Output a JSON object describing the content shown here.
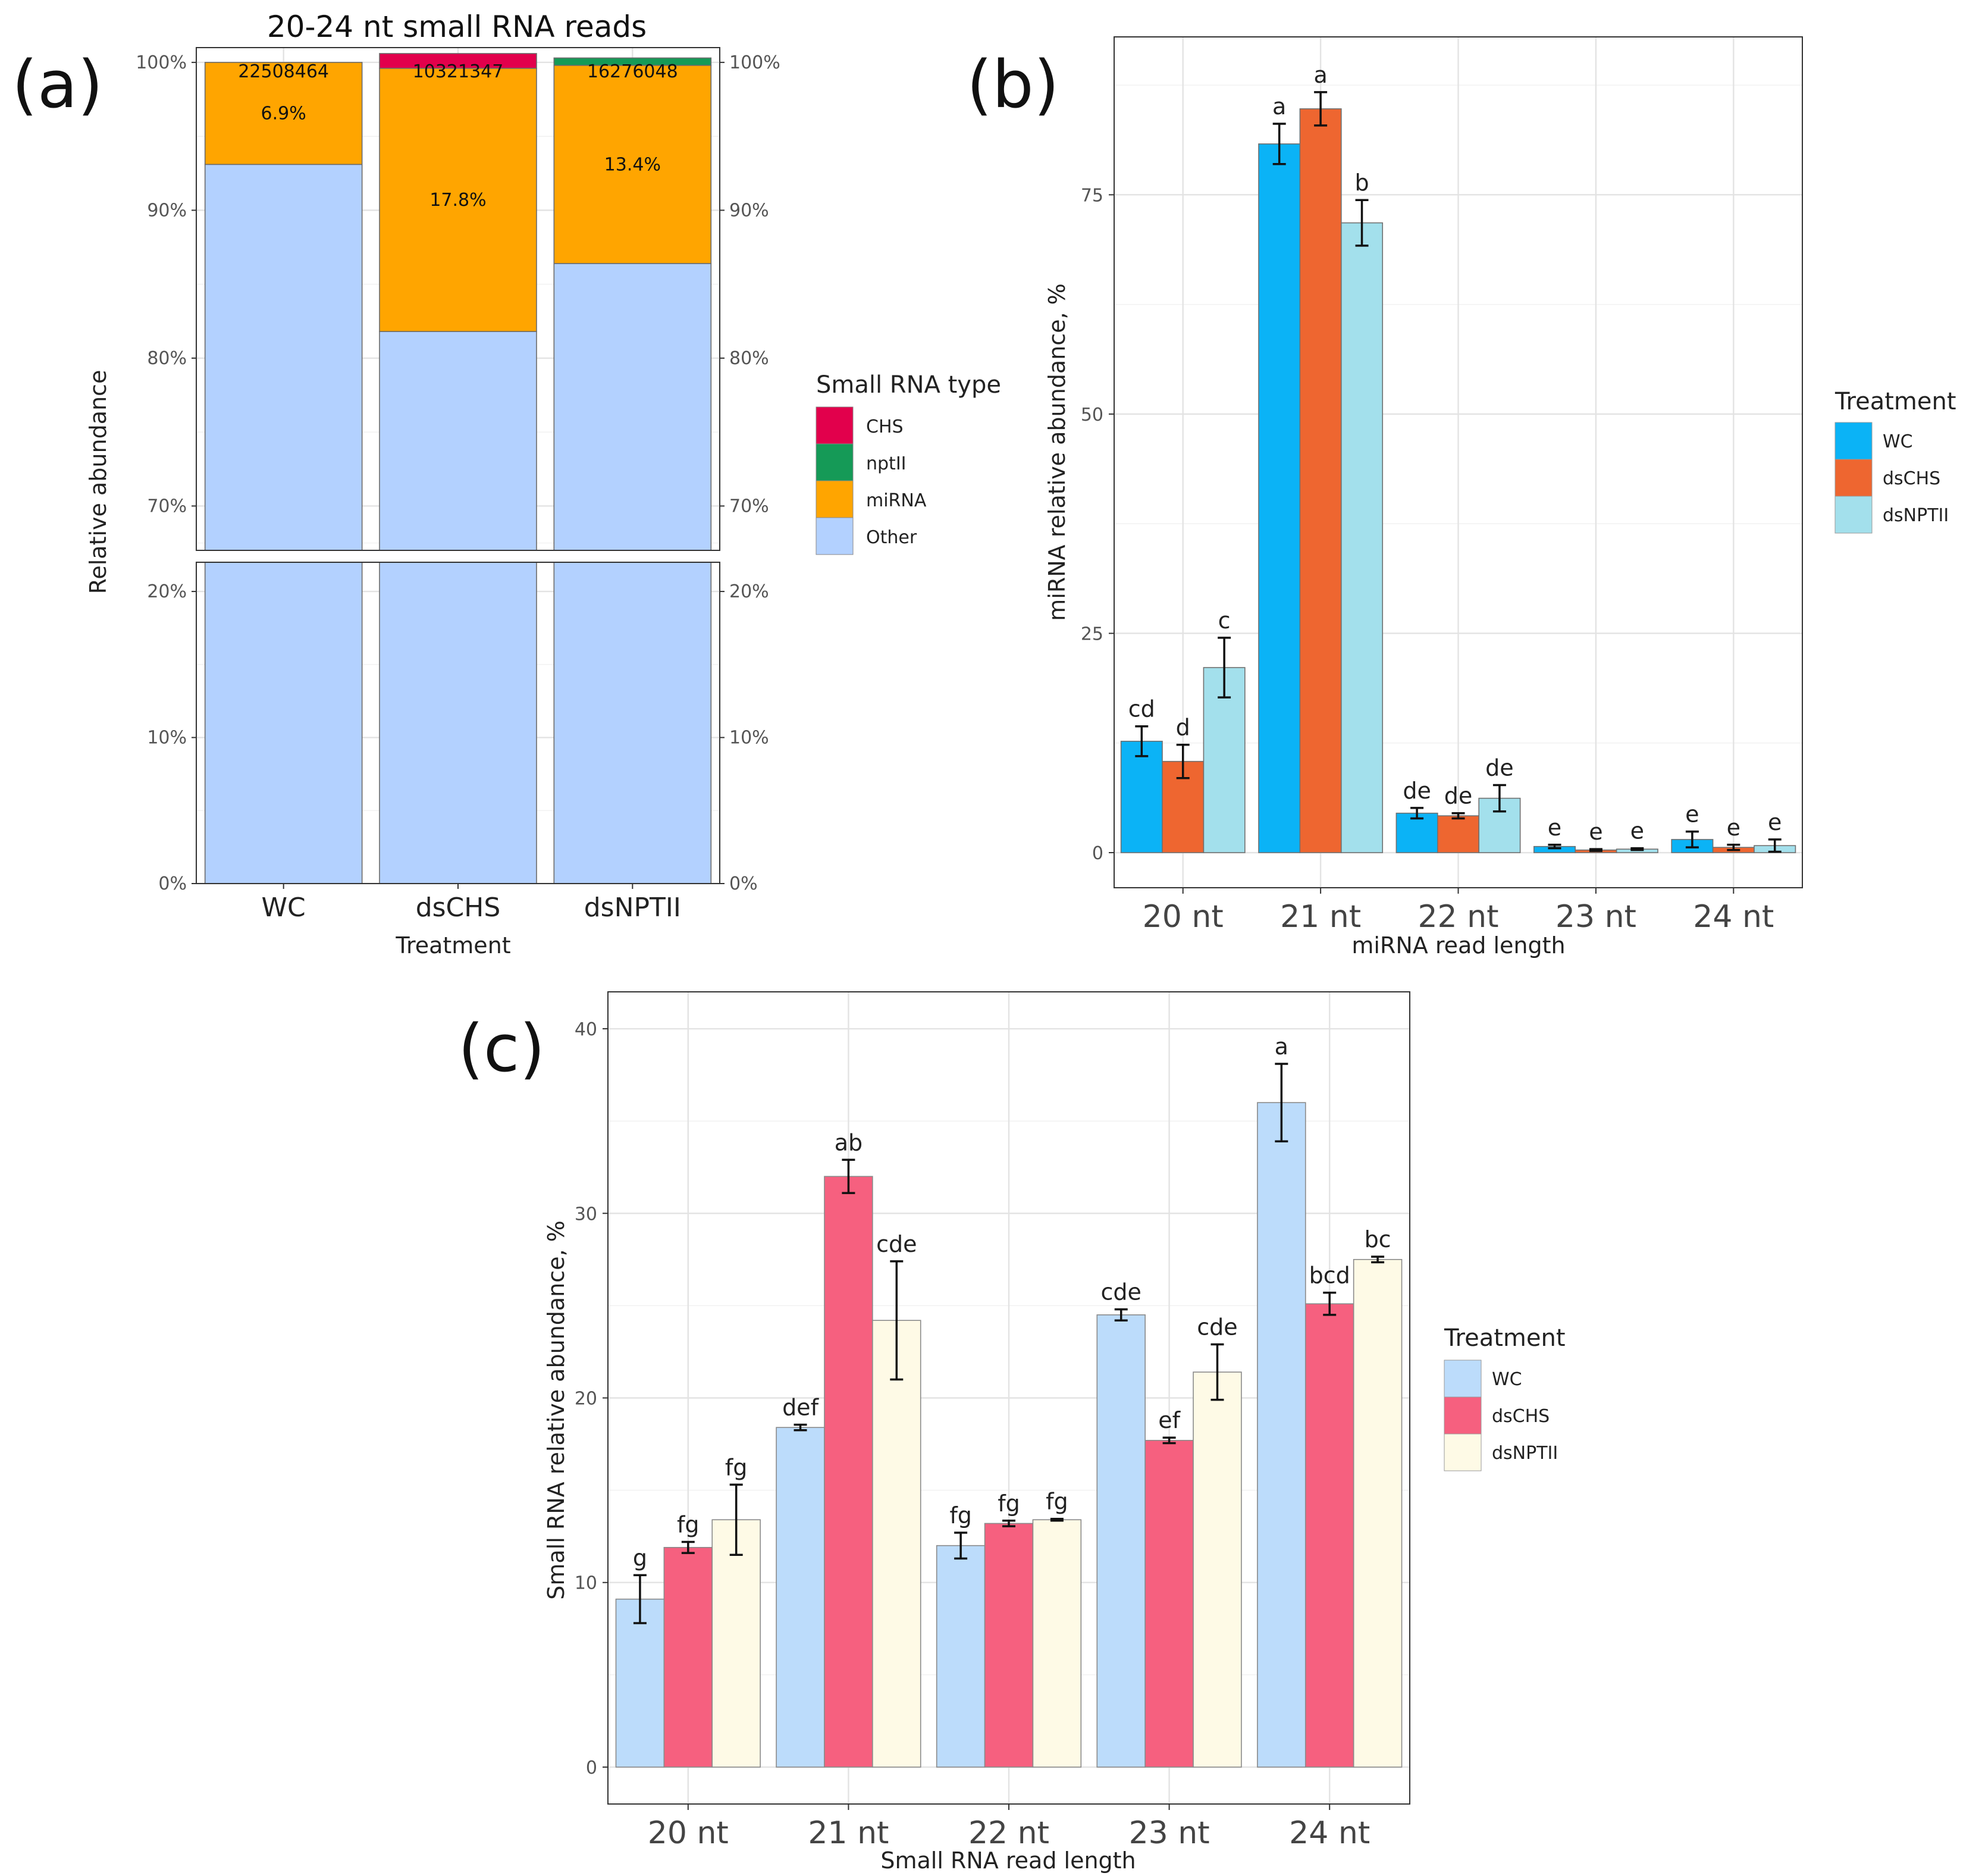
{
  "panels": {
    "a": "(a)",
    "b": "(b)",
    "c": "(c)"
  },
  "chart_data": [
    {
      "id": "a",
      "type": "bar",
      "stacked": true,
      "title": "20-24 nt small RNA reads",
      "xlabel": "Treatment",
      "ylabel": "Relative abundance",
      "categories": [
        "WC",
        "dsCHS",
        "dsNPTII"
      ],
      "read_counts": [
        "22508464",
        "10321347",
        "16276048"
      ],
      "series": [
        {
          "name": "Other",
          "color": "#b3d1ff",
          "values": [
            93.1,
            81.8,
            86.4
          ]
        },
        {
          "name": "miRNA",
          "color": "#ffa500",
          "values": [
            6.9,
            17.8,
            13.4
          ]
        },
        {
          "name": "nptII",
          "color": "#159a57",
          "values": [
            0.0,
            0.0,
            0.5
          ]
        },
        {
          "name": "CHS",
          "color": "#e2004c",
          "values": [
            0.0,
            1.0,
            0.0
          ]
        }
      ],
      "miRNA_labels": [
        "6.9%",
        "17.8%",
        "13.4%"
      ],
      "axis_break": {
        "lower": [
          0,
          22
        ],
        "upper": [
          67,
          101
        ]
      },
      "yticks_upper": [
        "70%",
        "80%",
        "90%",
        "100%"
      ],
      "yticks_lower": [
        "0%",
        "10%",
        "20%"
      ],
      "legend": {
        "title": "Small RNA type",
        "entries": [
          {
            "label": "CHS",
            "color": "#e2004c"
          },
          {
            "label": "nptII",
            "color": "#159a57"
          },
          {
            "label": "miRNA",
            "color": "#ffa500"
          },
          {
            "label": "Other",
            "color": "#b3d1ff"
          }
        ]
      }
    },
    {
      "id": "b",
      "type": "bar",
      "xlabel": "miRNA read length",
      "ylabel": "miRNA relative abundance, %",
      "categories": [
        "20 nt",
        "21 nt",
        "22 nt",
        "23 nt",
        "24 nt"
      ],
      "ylim": [
        -4,
        93
      ],
      "yticks": [
        0,
        25,
        50,
        75
      ],
      "series": [
        {
          "name": "WC",
          "color": "#0bb3f6",
          "values": [
            12.7,
            80.8,
            4.5,
            0.7,
            1.5
          ],
          "errors": [
            1.7,
            2.3,
            0.6,
            0.2,
            0.9
          ],
          "letters": [
            "cd",
            "a",
            "de",
            "e",
            "e"
          ]
        },
        {
          "name": "dsCHS",
          "color": "#ee6630",
          "values": [
            10.4,
            84.8,
            4.2,
            0.3,
            0.6
          ],
          "errors": [
            1.9,
            1.9,
            0.3,
            0.1,
            0.3
          ],
          "letters": [
            "d",
            "a",
            "de",
            "e",
            "e"
          ]
        },
        {
          "name": "dsNPTII",
          "color": "#a3e0ec",
          "values": [
            21.1,
            71.8,
            6.2,
            0.4,
            0.8
          ],
          "errors": [
            3.4,
            2.6,
            1.5,
            0.1,
            0.7
          ],
          "letters": [
            "c",
            "b",
            "de",
            "e",
            "e"
          ]
        }
      ],
      "legend": {
        "title": "Treatment"
      }
    },
    {
      "id": "c",
      "type": "bar",
      "xlabel": "Small RNA read length",
      "ylabel": "Small RNA relative abundance, %",
      "categories": [
        "20 nt",
        "21 nt",
        "22 nt",
        "23 nt",
        "24 nt"
      ],
      "ylim": [
        -2,
        42
      ],
      "yticks": [
        0,
        10,
        20,
        30,
        40
      ],
      "series": [
        {
          "name": "WC",
          "color": "#bcdcfb",
          "values": [
            9.1,
            18.4,
            12.0,
            24.5,
            36.0
          ],
          "errors": [
            1.3,
            0.15,
            0.7,
            0.3,
            2.1
          ],
          "letters": [
            "g",
            "def",
            "fg",
            "cde",
            "a"
          ]
        },
        {
          "name": "dsCHS",
          "color": "#f6607f",
          "values": [
            11.9,
            32.0,
            13.2,
            17.7,
            25.1
          ],
          "errors": [
            0.3,
            0.9,
            0.15,
            0.15,
            0.6
          ],
          "letters": [
            "fg",
            "ab",
            "fg",
            "ef",
            "bcd"
          ]
        },
        {
          "name": "dsNPTII",
          "color": "#fefae6",
          "values": [
            13.4,
            24.2,
            13.4,
            21.4,
            27.5
          ],
          "errors": [
            1.9,
            3.2,
            0.05,
            1.5,
            0.15
          ],
          "letters": [
            "fg",
            "cde",
            "fg",
            "cde",
            "bc"
          ]
        }
      ],
      "legend": {
        "title": "Treatment"
      }
    }
  ]
}
